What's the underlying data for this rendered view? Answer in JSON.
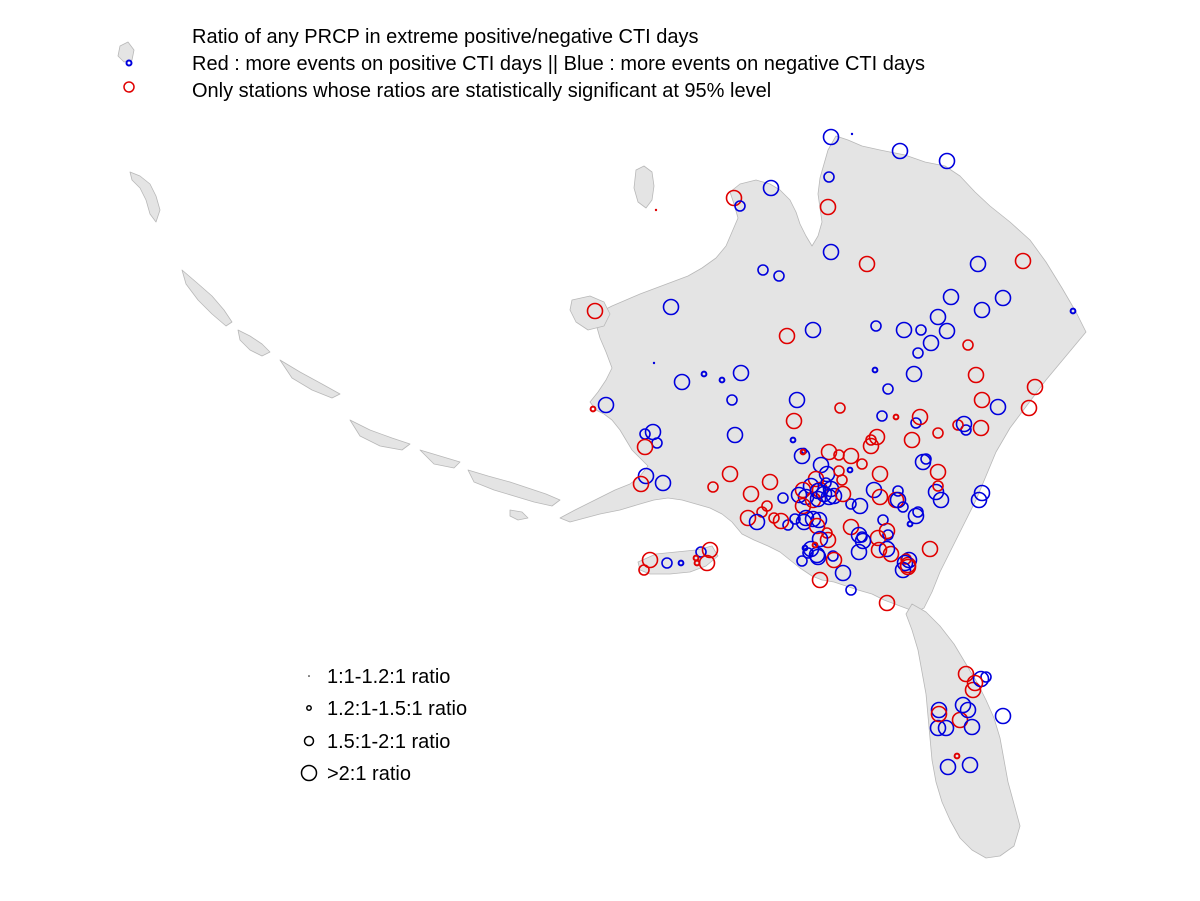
{
  "title": {
    "line1": "Ratio of any PRCP in extreme positive/negative CTI days",
    "line2": "Red : more events on positive CTI days || Blue : more events on negative CTI days",
    "line3": "Only stations whose ratios are statistically significant at 95% level"
  },
  "colors": {
    "positive": "#e00000",
    "negative": "#0000dd",
    "land": "#e4e4e4",
    "coast": "#b8b8b8"
  },
  "size_legend": [
    {
      "label": "1:1-1.2:1 ratio",
      "class": 1
    },
    {
      "label": "1.2:1-1.5:1 ratio",
      "class": 2
    },
    {
      "label": "1.5:1-2:1 ratio",
      "class": 3
    },
    {
      "label": ">2:1 ratio",
      "class": 4
    }
  ],
  "stations": [
    [
      "neg",
      4
    ],
    [
      "neg",
      1
    ],
    [
      "neg",
      4
    ],
    [
      "neg",
      4
    ],
    [
      "neg",
      3
    ],
    [
      "neg",
      4
    ],
    [
      "pos",
      4
    ],
    [
      "neg",
      3
    ],
    [
      "pos",
      4
    ],
    [
      "pos",
      1
    ],
    [
      "neg",
      3
    ],
    [
      "neg",
      3
    ],
    [
      "neg",
      4
    ],
    [
      "pos",
      4
    ],
    [
      "neg",
      4
    ],
    [
      "pos",
      4
    ],
    [
      "neg",
      4
    ],
    [
      "neg",
      4
    ],
    [
      "neg",
      4
    ],
    [
      "neg",
      4
    ],
    [
      "neg",
      2
    ],
    [
      "pos",
      4
    ],
    [
      "neg",
      4
    ],
    [
      "neg",
      3
    ],
    [
      "neg",
      4
    ],
    [
      "neg",
      3
    ],
    [
      "neg",
      4
    ],
    [
      "pos",
      4
    ],
    [
      "neg",
      4
    ],
    [
      "neg",
      4
    ],
    [
      "pos",
      3
    ],
    [
      "neg",
      3
    ],
    [
      "neg",
      2
    ],
    [
      "neg",
      1
    ],
    [
      "neg",
      4
    ],
    [
      "neg",
      2
    ],
    [
      "neg",
      4
    ],
    [
      "neg",
      2
    ],
    [
      "neg",
      3
    ],
    [
      "neg",
      4
    ],
    [
      "pos",
      4
    ],
    [
      "pos",
      4
    ],
    [
      "pos",
      2
    ],
    [
      "neg",
      4
    ],
    [
      "neg",
      4
    ],
    [
      "pos",
      3
    ],
    [
      "neg",
      3
    ],
    [
      "pos",
      4
    ],
    [
      "pos",
      4
    ],
    [
      "neg",
      4
    ],
    [
      "neg",
      3
    ],
    [
      "pos",
      4
    ],
    [
      "neg",
      4
    ],
    [
      "neg",
      3
    ],
    [
      "pos",
      2
    ],
    [
      "neg",
      3
    ],
    [
      "neg",
      2
    ],
    [
      "pos",
      4
    ],
    [
      "neg",
      3
    ],
    [
      "pos",
      4
    ],
    [
      "neg",
      2
    ],
    [
      "neg",
      4
    ],
    [
      "pos",
      4
    ],
    [
      "pos",
      3
    ],
    [
      "pos",
      3
    ],
    [
      "pos",
      4
    ],
    [
      "neg",
      3
    ],
    [
      "pos",
      3
    ],
    [
      "neg",
      3
    ],
    [
      "neg",
      4
    ],
    [
      "pos",
      4
    ],
    [
      "neg",
      4
    ],
    [
      "pos",
      4
    ],
    [
      "neg",
      4
    ],
    [
      "pos",
      4
    ],
    [
      "pos",
      3
    ],
    [
      "pos",
      4
    ],
    [
      "neg",
      4
    ],
    [
      "pos",
      3
    ],
    [
      "pos",
      4
    ],
    [
      "neg",
      4
    ],
    [
      "pos",
      4
    ],
    [
      "neg",
      4
    ],
    [
      "pos",
      4
    ],
    [
      "neg",
      4
    ],
    [
      "pos",
      4
    ],
    [
      "neg",
      4
    ],
    [
      "pos",
      4
    ],
    [
      "neg",
      4
    ],
    [
      "neg",
      4
    ],
    [
      "pos",
      3
    ],
    [
      "neg",
      4
    ],
    [
      "neg",
      4
    ],
    [
      "pos",
      4
    ],
    [
      "neg",
      4
    ],
    [
      "pos",
      4
    ],
    [
      "neg",
      4
    ],
    [
      "neg",
      3
    ],
    [
      "pos",
      3
    ],
    [
      "neg",
      4
    ],
    [
      "pos",
      4
    ],
    [
      "pos",
      4
    ],
    [
      "neg",
      3
    ],
    [
      "pos",
      3
    ],
    [
      "neg",
      4
    ],
    [
      "pos",
      4
    ],
    [
      "neg",
      3
    ],
    [
      "neg",
      4
    ],
    [
      "pos",
      4
    ],
    [
      "neg",
      4
    ],
    [
      "pos",
      4
    ],
    [
      "pos",
      4
    ],
    [
      "neg",
      3
    ],
    [
      "neg",
      4
    ],
    [
      "neg",
      4
    ],
    [
      "pos",
      3
    ],
    [
      "pos",
      4
    ],
    [
      "neg",
      4
    ],
    [
      "pos",
      3
    ],
    [
      "neg",
      3
    ],
    [
      "neg",
      4
    ],
    [
      "neg",
      4
    ],
    [
      "neg",
      3
    ],
    [
      "pos",
      4
    ],
    [
      "neg",
      4
    ],
    [
      "neg",
      3
    ],
    [
      "neg",
      2
    ],
    [
      "neg",
      3
    ],
    [
      "neg",
      4
    ],
    [
      "neg",
      3
    ],
    [
      "pos",
      4
    ],
    [
      "pos",
      3
    ],
    [
      "neg",
      4
    ],
    [
      "pos",
      4
    ],
    [
      "pos",
      4
    ],
    [
      "neg",
      3
    ],
    [
      "pos",
      4
    ],
    [
      "neg",
      3
    ],
    [
      "pos",
      4
    ],
    [
      "neg",
      4
    ],
    [
      "pos",
      3
    ],
    [
      "pos",
      4
    ],
    [
      "neg",
      4
    ],
    [
      "pos",
      4
    ],
    [
      "neg",
      4
    ],
    [
      "pos",
      4
    ],
    [
      "pos",
      4
    ],
    [
      "neg",
      4
    ],
    [
      "neg",
      4
    ],
    [
      "pos",
      4
    ],
    [
      "pos",
      3
    ],
    [
      "neg",
      3
    ],
    [
      "pos",
      2
    ],
    [
      "neg",
      3
    ],
    [
      "pos",
      4
    ],
    [
      "pos",
      2
    ],
    [
      "neg",
      2
    ],
    [
      "pos",
      4
    ],
    [
      "neg",
      3
    ],
    [
      "neg",
      4
    ],
    [
      "neg",
      4
    ],
    [
      "neg",
      4
    ],
    [
      "pos",
      4
    ],
    [
      "neg",
      3
    ],
    [
      "pos",
      4
    ],
    [
      "pos",
      3
    ],
    [
      "neg",
      4
    ],
    [
      "pos",
      4
    ],
    [
      "neg",
      4
    ],
    [
      "pos",
      4
    ],
    [
      "neg",
      3
    ],
    [
      "neg",
      4
    ],
    [
      "pos",
      4
    ],
    [
      "neg",
      2
    ],
    [
      "pos",
      2
    ],
    [
      "neg",
      3
    ],
    [
      "neg",
      4
    ],
    [
      "pos",
      3
    ],
    [
      "neg",
      4
    ],
    [
      "neg",
      4
    ],
    [
      "neg",
      2
    ],
    [
      "pos",
      2
    ],
    [
      "neg",
      4
    ],
    [
      "pos",
      4
    ],
    [
      "neg",
      4
    ],
    [
      "neg",
      4
    ],
    [
      "neg",
      4
    ],
    [
      "pos",
      4
    ],
    [
      "neg",
      4
    ],
    [
      "neg",
      4
    ],
    [
      "neg",
      3
    ],
    [
      "pos",
      4
    ],
    [
      "neg",
      4
    ],
    [
      "pos",
      4
    ],
    [
      "neg",
      4
    ],
    [
      "pos",
      4
    ],
    [
      "neg",
      4
    ],
    [
      "pos",
      2
    ],
    [
      "neg",
      4
    ],
    [
      "neg",
      4
    ]
  ]
}
